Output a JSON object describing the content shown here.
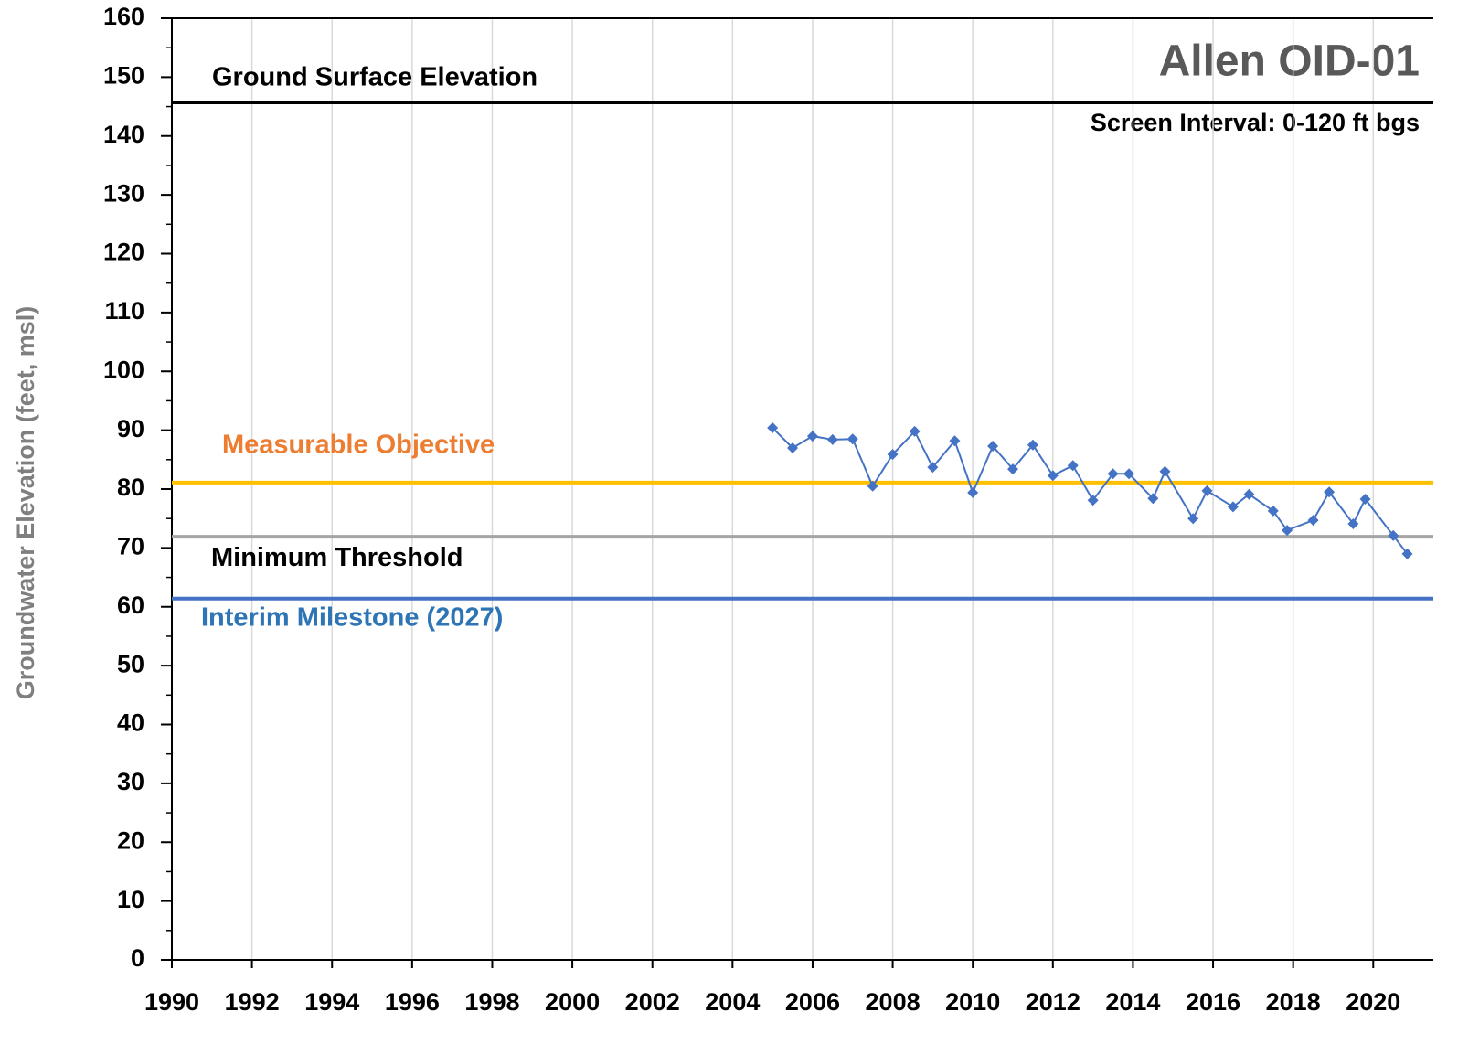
{
  "chart_data": {
    "type": "line",
    "title": "Allen OID-01",
    "subtitle": "Screen Interval: 0-120 ft bgs",
    "y_label": "Groundwater Elevation (feet, msl)",
    "xlim": [
      1990,
      2021.5
    ],
    "xticks": [
      1990,
      1992,
      1994,
      1996,
      1998,
      2000,
      2002,
      2004,
      2006,
      2008,
      2010,
      2012,
      2014,
      2016,
      2018,
      2020
    ],
    "ylim": [
      0,
      160
    ],
    "yticks": [
      0,
      10,
      20,
      30,
      40,
      50,
      60,
      70,
      80,
      90,
      100,
      110,
      120,
      130,
      140,
      150,
      160
    ],
    "grid": "x",
    "reference_lines": [
      {
        "name": "Ground Surface Elevation",
        "value": 145.7,
        "color": "#000000",
        "label_color": "#000000"
      },
      {
        "name": "Measurable Objective",
        "value": 81.1,
        "color": "#ffc000",
        "label_color": "#ed7d31"
      },
      {
        "name": "Minimum Threshold",
        "value": 71.9,
        "color": "#a5a5a5",
        "label_color": "#000000"
      },
      {
        "name": "Interim Milestone (2027)",
        "value": 61.4,
        "color": "#4472c4",
        "label_color": "#2e75b6"
      }
    ],
    "series": [
      {
        "color": "#4472c4",
        "x": [
          2005.0,
          2005.5,
          2006.0,
          2006.5,
          2007.0,
          2007.5,
          2008.0,
          2008.55,
          2009.0,
          2009.55,
          2010.0,
          2010.5,
          2011.0,
          2011.5,
          2012.0,
          2012.5,
          2013.0,
          2013.5,
          2013.9,
          2014.5,
          2014.8,
          2015.5,
          2015.85,
          2016.5,
          2016.9,
          2017.5,
          2017.85,
          2018.5,
          2018.9,
          2019.5,
          2019.8,
          2020.5,
          2020.85
        ],
        "values": [
          90.4,
          87.0,
          89.0,
          88.4,
          88.5,
          80.5,
          85.9,
          89.8,
          83.7,
          88.2,
          79.4,
          87.3,
          83.4,
          87.5,
          82.3,
          84.0,
          78.1,
          82.6,
          82.6,
          78.4,
          83.0,
          75.0,
          79.7,
          77.0,
          79.1,
          76.3,
          73.0,
          74.7,
          79.5,
          74.1,
          78.3,
          72.1,
          69.0
        ]
      }
    ]
  }
}
